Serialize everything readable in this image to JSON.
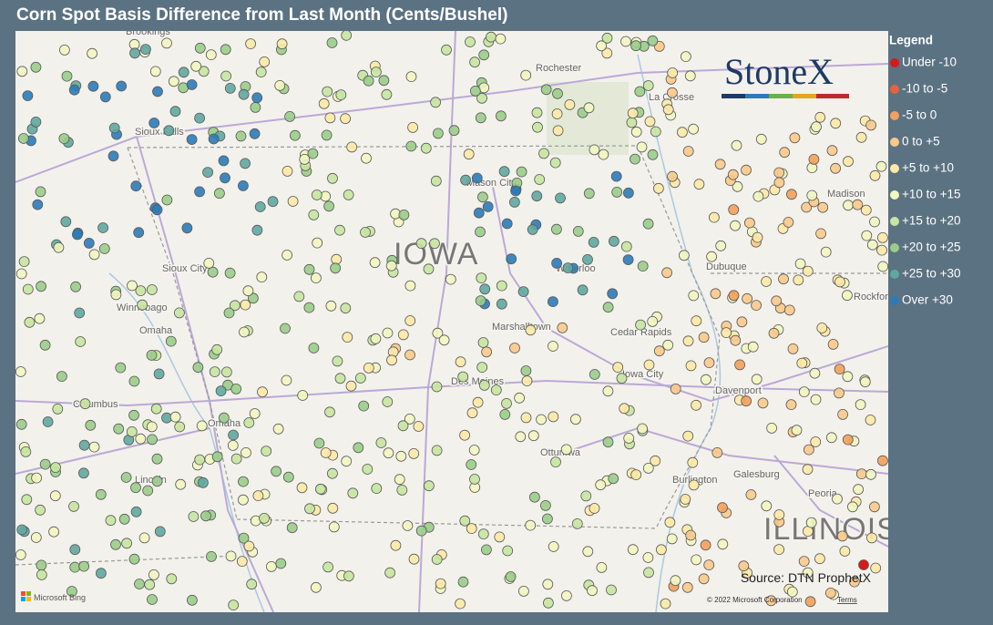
{
  "title": "Corn Spot Basis Difference from Last Month (Cents/Bushel)",
  "legend": {
    "title": "Legend",
    "items": [
      {
        "label": "Under -10",
        "color": "#d7191c"
      },
      {
        "label": "-10 to -5",
        "color": "#e8613f"
      },
      {
        "label": "-5 to 0",
        "color": "#f4a05a"
      },
      {
        "label": "0 to +5",
        "color": "#f9c98a"
      },
      {
        "label": "+5 to +10",
        "color": "#fde9a6"
      },
      {
        "label": "+10 to +15",
        "color": "#f1f6c0"
      },
      {
        "label": "+15 to +20",
        "color": "#c7e6a0"
      },
      {
        "label": "+20 to +25",
        "color": "#9acd8a"
      },
      {
        "label": "+25 to +30",
        "color": "#5fa8a0"
      },
      {
        "label": "Over +30",
        "color": "#2b7bb9"
      }
    ]
  },
  "map": {
    "states": [
      "IOWA",
      "ILLINOIS"
    ],
    "places": [
      "Brookings",
      "Sioux Falls",
      "Rochester",
      "La Crosse",
      "Madison",
      "Mason City",
      "Sioux City",
      "Waterloo",
      "Dubuque",
      "Rockford",
      "Winnebago",
      "Omaha",
      "Marshalltown",
      "Cedar Rapids",
      "Columbus",
      "Des Moines",
      "Iowa City",
      "Davenport",
      "Omaha",
      "Ottumwa",
      "Lincoln",
      "Burlington",
      "Galesburg",
      "Peoria"
    ]
  },
  "logo": "StoneX",
  "source": "Source: DTN ProphetX",
  "attribution": {
    "provider": "Microsoft Bing",
    "copyright": "© 2022 Microsoft Corporation",
    "terms": "Terms"
  }
}
